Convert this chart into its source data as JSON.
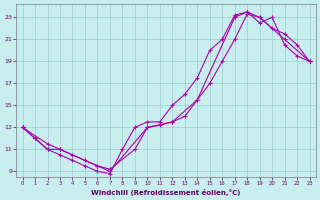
{
  "xlabel": "Windchill (Refroidissement éolien,°C)",
  "bg_color": "#c8eef0",
  "line_color": "#aa00aa",
  "grid_color": "#99cccc",
  "xlim": [
    -0.5,
    23.5
  ],
  "ylim": [
    8.5,
    24.2
  ],
  "xticks": [
    0,
    1,
    2,
    3,
    4,
    5,
    6,
    7,
    8,
    9,
    10,
    11,
    12,
    13,
    14,
    15,
    16,
    17,
    18,
    19,
    20,
    21,
    22,
    23
  ],
  "yticks": [
    9,
    11,
    13,
    15,
    17,
    19,
    21,
    23
  ],
  "line1_x": [
    0,
    1,
    2,
    3,
    4,
    5,
    6,
    7,
    8,
    9,
    10,
    11,
    12,
    13,
    14,
    15,
    16,
    17,
    18,
    19,
    20,
    21,
    22,
    23
  ],
  "line1_y": [
    13,
    12,
    11,
    10.5,
    10,
    9.5,
    9,
    8.8,
    11,
    13,
    13.5,
    13.5,
    15,
    16,
    17.5,
    20,
    21,
    23.2,
    23.5,
    22.5,
    23,
    20.5,
    19.5,
    19
  ],
  "line2_x": [
    0,
    1,
    2,
    3,
    4,
    5,
    6,
    7,
    9,
    10,
    11,
    12,
    13,
    14,
    15,
    16,
    17,
    18,
    19,
    20,
    21,
    22,
    23
  ],
  "line2_y": [
    13,
    12,
    11,
    11,
    10.5,
    10,
    9.5,
    9.2,
    11,
    13,
    13.2,
    13.5,
    14,
    15.5,
    17,
    19,
    21,
    23.3,
    23,
    22,
    21.5,
    20.5,
    19
  ],
  "line3_x": [
    0,
    2,
    3,
    6,
    7,
    10,
    12,
    14,
    17,
    18,
    19,
    21,
    23
  ],
  "line3_y": [
    13,
    11.5,
    11,
    9.5,
    9.0,
    13,
    13.5,
    15.5,
    23,
    23.5,
    23,
    21,
    19
  ]
}
